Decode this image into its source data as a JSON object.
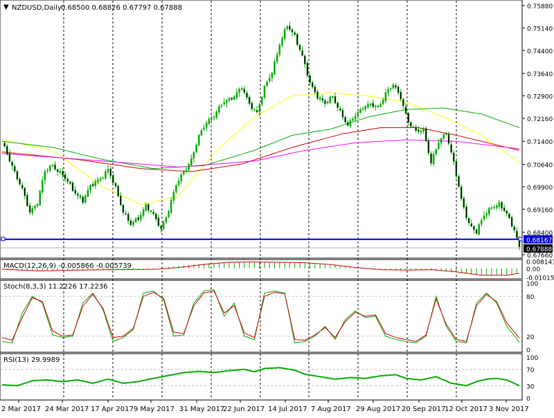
{
  "chart_data": {
    "type": "candlestick",
    "symbol_label": "NZDUSD,Daily",
    "ohlc_label": "0.68500 0.68826 0.67797 0.67888",
    "x_labels": [
      "2 Mar 2017",
      "24 Mar 2017",
      "17 Apr 2017",
      "9 May 2017",
      "31 May 2017",
      "22 Jun 2017",
      "14 Jul 2017",
      "7 Aug 2017",
      "29 Aug 2017",
      "20 Sep 2017",
      "12 Oct 2017",
      "3 Nov 2017"
    ],
    "price_axis": {
      "ylim": [
        0.6766,
        0.7588
      ],
      "ticks": [
        "0.75880",
        "0.75140",
        "0.74400",
        "0.73640",
        "0.72900",
        "0.72160",
        "0.71400",
        "0.70640",
        "0.69900",
        "0.69160",
        "0.68400",
        "0.67660"
      ],
      "level_line": {
        "value": 0.68167,
        "label": "0.68167",
        "color": "#0000cc"
      },
      "last_price": {
        "value": 0.67888,
        "label": "0.67888"
      }
    },
    "close_path": [
      [
        0,
        0.7135
      ],
      [
        4,
        0.706
      ],
      [
        8,
        0.698
      ],
      [
        11,
        0.6905
      ],
      [
        14,
        0.694
      ],
      [
        17,
        0.704
      ],
      [
        20,
        0.706
      ],
      [
        24,
        0.703
      ],
      [
        28,
        0.698
      ],
      [
        32,
        0.6945
      ],
      [
        35,
        0.699
      ],
      [
        39,
        0.702
      ],
      [
        42,
        0.7045
      ],
      [
        45,
        0.6985
      ],
      [
        48,
        0.691
      ],
      [
        51,
        0.6865
      ],
      [
        54,
        0.6885
      ],
      [
        57,
        0.693
      ],
      [
        60,
        0.6895
      ],
      [
        63,
        0.685
      ],
      [
        66,
        0.6915
      ],
      [
        69,
        0.6995
      ],
      [
        72,
        0.704
      ],
      [
        75,
        0.708
      ],
      [
        78,
        0.7155
      ],
      [
        81,
        0.7205
      ],
      [
        84,
        0.7225
      ],
      [
        88,
        0.727
      ],
      [
        92,
        0.729
      ],
      [
        95,
        0.7315
      ],
      [
        98,
        0.7265
      ],
      [
        101,
        0.7235
      ],
      [
        104,
        0.7315
      ],
      [
        107,
        0.737
      ],
      [
        110,
        0.746
      ],
      [
        113,
        0.752
      ],
      [
        116,
        0.749
      ],
      [
        119,
        0.742
      ],
      [
        122,
        0.733
      ],
      [
        125,
        0.729
      ],
      [
        128,
        0.7265
      ],
      [
        131,
        0.7285
      ],
      [
        134,
        0.724
      ],
      [
        137,
        0.719
      ],
      [
        140,
        0.7225
      ],
      [
        143,
        0.7255
      ],
      [
        146,
        0.726
      ],
      [
        149,
        0.725
      ],
      [
        152,
        0.73
      ],
      [
        155,
        0.7325
      ],
      [
        158,
        0.7285
      ],
      [
        161,
        0.7205
      ],
      [
        164,
        0.717
      ],
      [
        167,
        0.718
      ],
      [
        170,
        0.707
      ],
      [
        173,
        0.7135
      ],
      [
        176,
        0.717
      ],
      [
        179,
        0.707
      ],
      [
        182,
        0.6945
      ],
      [
        185,
        0.687
      ],
      [
        188,
        0.684
      ],
      [
        191,
        0.6895
      ],
      [
        194,
        0.6925
      ],
      [
        197,
        0.693
      ],
      [
        200,
        0.69
      ],
      [
        203,
        0.685
      ],
      [
        205,
        0.6789
      ]
    ],
    "moving_averages": [
      {
        "color": "#ffff00",
        "points": [
          [
            0,
            0.7145
          ],
          [
            20,
            0.711
          ],
          [
            40,
            0.699
          ],
          [
            55,
            0.693
          ],
          [
            70,
            0.696
          ],
          [
            85,
            0.711
          ],
          [
            100,
            0.722
          ],
          [
            115,
            0.729
          ],
          [
            130,
            0.73
          ],
          [
            145,
            0.729
          ],
          [
            160,
            0.727
          ],
          [
            175,
            0.722
          ],
          [
            190,
            0.716
          ],
          [
            205,
            0.707
          ]
        ]
      },
      {
        "color": "#00aa00",
        "points": [
          [
            0,
            0.714
          ],
          [
            20,
            0.712
          ],
          [
            40,
            0.708
          ],
          [
            60,
            0.705
          ],
          [
            80,
            0.706
          ],
          [
            100,
            0.711
          ],
          [
            115,
            0.716
          ],
          [
            130,
            0.718
          ],
          [
            145,
            0.722
          ],
          [
            160,
            0.7245
          ],
          [
            175,
            0.725
          ],
          [
            190,
            0.723
          ],
          [
            205,
            0.7185
          ]
        ]
      },
      {
        "color": "#cc0000",
        "points": [
          [
            0,
            0.7105
          ],
          [
            30,
            0.708
          ],
          [
            55,
            0.705
          ],
          [
            75,
            0.704
          ],
          [
            95,
            0.7065
          ],
          [
            115,
            0.712
          ],
          [
            135,
            0.7165
          ],
          [
            150,
            0.7185
          ],
          [
            165,
            0.7185
          ],
          [
            180,
            0.716
          ],
          [
            195,
            0.713
          ],
          [
            205,
            0.711
          ]
        ]
      },
      {
        "color": "#ff00ff",
        "points": [
          [
            0,
            0.71
          ],
          [
            40,
            0.7075
          ],
          [
            70,
            0.7055
          ],
          [
            100,
            0.7075
          ],
          [
            120,
            0.711
          ],
          [
            140,
            0.7135
          ],
          [
            160,
            0.7145
          ],
          [
            180,
            0.714
          ],
          [
            195,
            0.7125
          ],
          [
            205,
            0.7115
          ]
        ]
      }
    ],
    "macd": {
      "label": "MACD(12,26,9) -0.005866 -0.005739",
      "ticks": [
        "0.008141",
        "0.00",
        "-0.010158"
      ],
      "ylim": [
        -0.0106,
        0.0086
      ],
      "histogram": [
        [
          0,
          -0.001
        ],
        [
          10,
          -0.0025
        ],
        [
          20,
          -0.002
        ],
        [
          30,
          -0.0015
        ],
        [
          40,
          -0.0012
        ],
        [
          50,
          -0.0018
        ],
        [
          60,
          -0.001
        ],
        [
          70,
          0.003
        ],
        [
          80,
          0.0055
        ],
        [
          90,
          0.0075
        ],
        [
          100,
          0.0078
        ],
        [
          110,
          0.0075
        ],
        [
          120,
          0.006
        ],
        [
          130,
          0.004
        ],
        [
          140,
          0.001
        ],
        [
          150,
          -0.001
        ],
        [
          160,
          -0.002
        ],
        [
          170,
          -0.002
        ],
        [
          180,
          -0.005
        ],
        [
          190,
          -0.0085
        ],
        [
          200,
          -0.0075
        ],
        [
          205,
          -0.0059
        ]
      ],
      "signal": [
        [
          0,
          -0.001
        ],
        [
          15,
          -0.003
        ],
        [
          30,
          -0.002
        ],
        [
          45,
          -0.0015
        ],
        [
          60,
          -0.0012
        ],
        [
          70,
          0.001
        ],
        [
          80,
          0.0045
        ],
        [
          90,
          0.007
        ],
        [
          100,
          0.0075
        ],
        [
          110,
          0.007
        ],
        [
          120,
          0.0065
        ],
        [
          130,
          0.0045
        ],
        [
          140,
          0.001
        ],
        [
          150,
          -0.0015
        ],
        [
          160,
          -0.002
        ],
        [
          170,
          -0.0015
        ],
        [
          180,
          -0.004
        ],
        [
          190,
          -0.008
        ],
        [
          200,
          -0.008
        ],
        [
          205,
          -0.0057
        ]
      ]
    },
    "stochastic": {
      "label": "Stoch(8,3,3) 11.2226 17.2236",
      "ticks": [
        "100",
        "80",
        "20",
        "0"
      ],
      "ylim": [
        0,
        100
      ],
      "k": [
        [
          0,
          12
        ],
        [
          4,
          10
        ],
        [
          8,
          55
        ],
        [
          12,
          80
        ],
        [
          16,
          70
        ],
        [
          20,
          22
        ],
        [
          24,
          18
        ],
        [
          28,
          20
        ],
        [
          32,
          70
        ],
        [
          36,
          85
        ],
        [
          40,
          60
        ],
        [
          44,
          12
        ],
        [
          48,
          18
        ],
        [
          52,
          30
        ],
        [
          56,
          85
        ],
        [
          60,
          88
        ],
        [
          64,
          75
        ],
        [
          68,
          20
        ],
        [
          72,
          22
        ],
        [
          76,
          70
        ],
        [
          80,
          88
        ],
        [
          84,
          90
        ],
        [
          88,
          50
        ],
        [
          92,
          70
        ],
        [
          96,
          20
        ],
        [
          100,
          15
        ],
        [
          104,
          85
        ],
        [
          108,
          88
        ],
        [
          112,
          85
        ],
        [
          116,
          10
        ],
        [
          120,
          12
        ],
        [
          124,
          20
        ],
        [
          128,
          35
        ],
        [
          132,
          15
        ],
        [
          136,
          45
        ],
        [
          140,
          58
        ],
        [
          144,
          48
        ],
        [
          148,
          50
        ],
        [
          152,
          20
        ],
        [
          156,
          15
        ],
        [
          160,
          12
        ],
        [
          164,
          10
        ],
        [
          168,
          20
        ],
        [
          172,
          80
        ],
        [
          176,
          35
        ],
        [
          180,
          12
        ],
        [
          184,
          10
        ],
        [
          188,
          70
        ],
        [
          192,
          85
        ],
        [
          196,
          70
        ],
        [
          200,
          35
        ],
        [
          205,
          11
        ]
      ],
      "d": [
        [
          0,
          18
        ],
        [
          4,
          14
        ],
        [
          8,
          48
        ],
        [
          12,
          78
        ],
        [
          16,
          72
        ],
        [
          20,
          28
        ],
        [
          24,
          20
        ],
        [
          28,
          22
        ],
        [
          32,
          65
        ],
        [
          36,
          83
        ],
        [
          40,
          62
        ],
        [
          44,
          18
        ],
        [
          48,
          20
        ],
        [
          52,
          32
        ],
        [
          56,
          80
        ],
        [
          60,
          86
        ],
        [
          64,
          77
        ],
        [
          68,
          26
        ],
        [
          72,
          24
        ],
        [
          76,
          66
        ],
        [
          80,
          85
        ],
        [
          84,
          88
        ],
        [
          88,
          55
        ],
        [
          92,
          66
        ],
        [
          96,
          25
        ],
        [
          100,
          18
        ],
        [
          104,
          80
        ],
        [
          108,
          86
        ],
        [
          112,
          84
        ],
        [
          116,
          15
        ],
        [
          120,
          14
        ],
        [
          124,
          22
        ],
        [
          128,
          33
        ],
        [
          132,
          18
        ],
        [
          136,
          42
        ],
        [
          140,
          56
        ],
        [
          144,
          50
        ],
        [
          148,
          52
        ],
        [
          152,
          24
        ],
        [
          156,
          18
        ],
        [
          160,
          15
        ],
        [
          164,
          12
        ],
        [
          168,
          22
        ],
        [
          172,
          76
        ],
        [
          176,
          38
        ],
        [
          180,
          15
        ],
        [
          184,
          12
        ],
        [
          188,
          66
        ],
        [
          192,
          83
        ],
        [
          196,
          72
        ],
        [
          200,
          40
        ],
        [
          205,
          17
        ]
      ]
    },
    "rsi": {
      "label": "RSI(13) 29.9989",
      "ticks": [
        "100",
        "70",
        "30",
        "0"
      ],
      "ylim": [
        0,
        100
      ],
      "values": [
        [
          0,
          32
        ],
        [
          6,
          30
        ],
        [
          12,
          42
        ],
        [
          18,
          44
        ],
        [
          24,
          40
        ],
        [
          30,
          44
        ],
        [
          36,
          36
        ],
        [
          42,
          46
        ],
        [
          48,
          36
        ],
        [
          54,
          40
        ],
        [
          60,
          48
        ],
        [
          66,
          55
        ],
        [
          72,
          62
        ],
        [
          78,
          65
        ],
        [
          84,
          62
        ],
        [
          90,
          67
        ],
        [
          96,
          70
        ],
        [
          100,
          64
        ],
        [
          104,
          72
        ],
        [
          110,
          74
        ],
        [
          116,
          68
        ],
        [
          120,
          58
        ],
        [
          126,
          52
        ],
        [
          132,
          46
        ],
        [
          138,
          50
        ],
        [
          144,
          48
        ],
        [
          150,
          54
        ],
        [
          156,
          57
        ],
        [
          160,
          48
        ],
        [
          166,
          44
        ],
        [
          172,
          52
        ],
        [
          178,
          36
        ],
        [
          184,
          30
        ],
        [
          188,
          40
        ],
        [
          192,
          46
        ],
        [
          196,
          48
        ],
        [
          200,
          44
        ],
        [
          205,
          30
        ]
      ]
    }
  }
}
